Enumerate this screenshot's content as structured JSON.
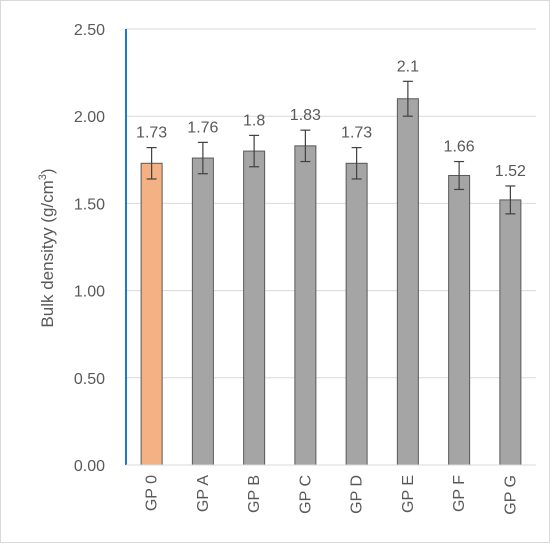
{
  "chart_data": {
    "type": "bar",
    "categories": [
      "GP 0",
      "GP A",
      "GP B",
      "GP C",
      "GP D",
      "GP E",
      "GP F",
      "GP G"
    ],
    "values": [
      1.73,
      1.76,
      1.8,
      1.83,
      1.73,
      2.1,
      1.66,
      1.52
    ],
    "data_labels": [
      "1.73",
      "1.76",
      "1.8",
      "1.83",
      "1.73",
      "2.1",
      "1.66",
      "1.52"
    ],
    "error": [
      0.09,
      0.09,
      0.09,
      0.09,
      0.09,
      0.1,
      0.08,
      0.08
    ],
    "ylabel": "Bulk densityy (g/cm",
    "ylabel_superscript": "3",
    "ylabel_close": ")",
    "ylim": [
      0,
      2.5
    ],
    "yticks": [
      "0.00",
      "0.50",
      "1.00",
      "1.50",
      "2.00",
      "2.50"
    ],
    "ytick_values": [
      0,
      0.5,
      1.0,
      1.5,
      2.0,
      2.5
    ],
    "grid": true,
    "colors": {
      "highlight_bar": "#f4b183",
      "bar": "#a5a5a5",
      "bar_edge": "#595959",
      "gridline": "#d9d9d9",
      "axis": "#1f78c8",
      "text": "#595959"
    }
  }
}
